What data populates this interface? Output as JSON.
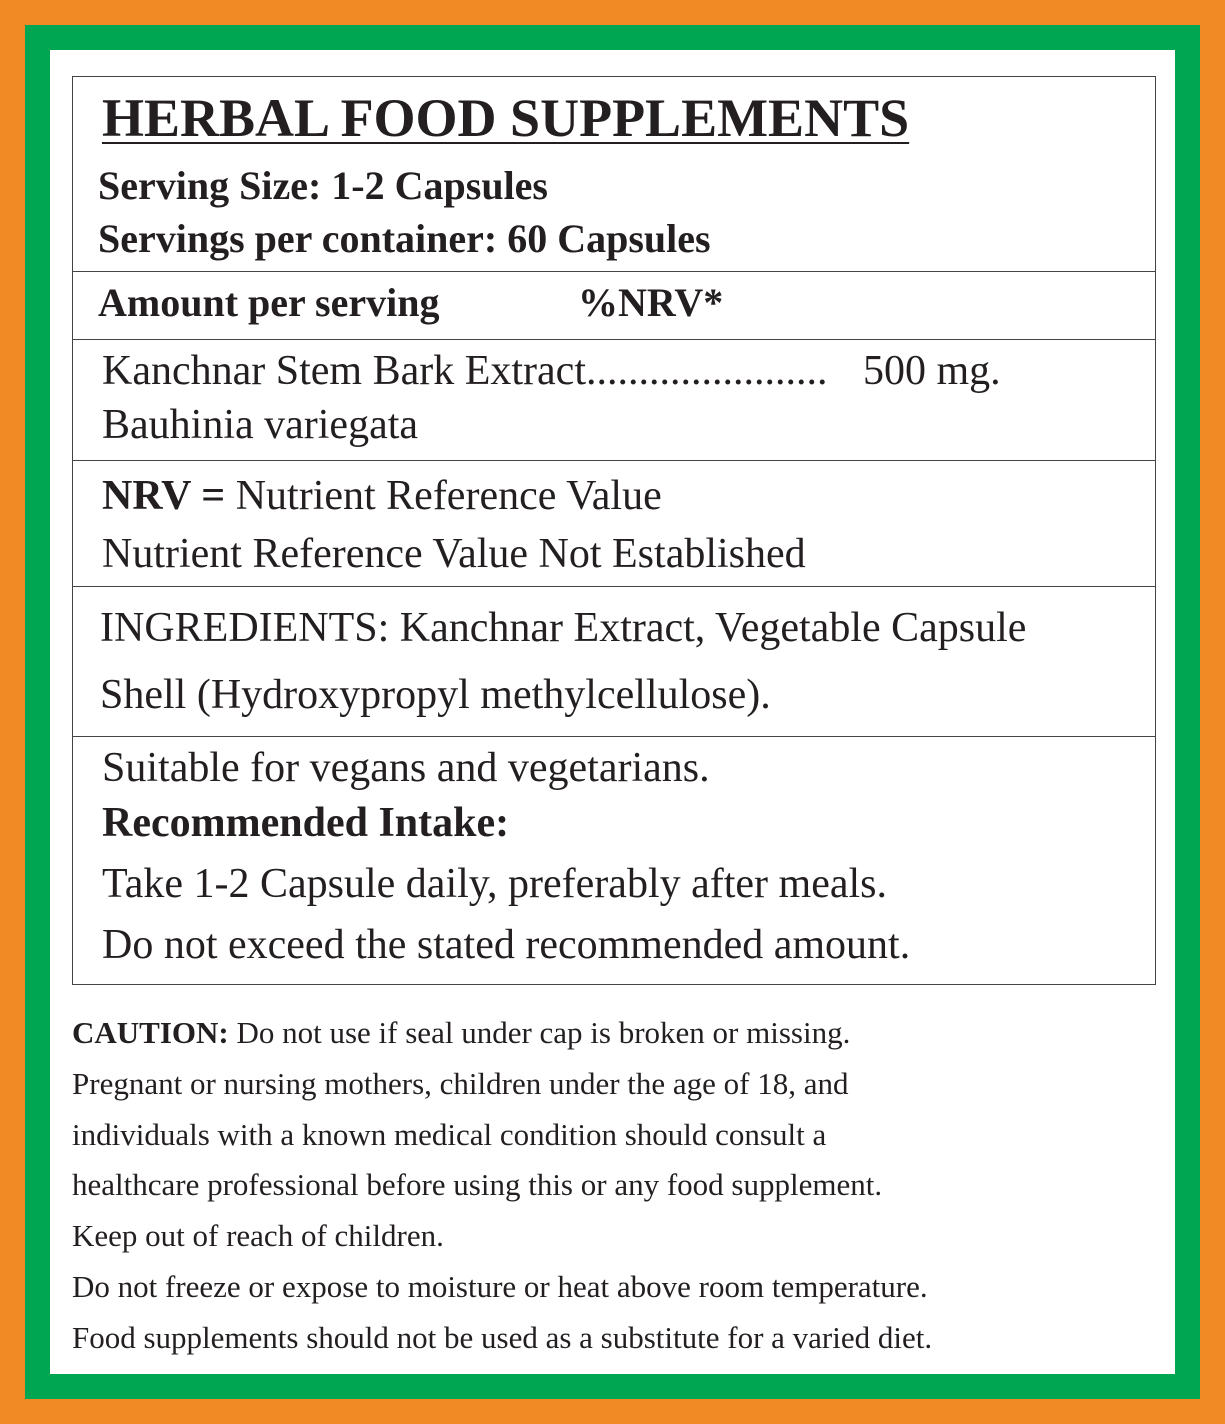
{
  "colors": {
    "outer_border": "#f18a24",
    "inner_border": "#00a651",
    "background": "#ffffff",
    "text": "#231f20"
  },
  "header": {
    "title": "HERBAL FOOD SUPPLEMENTS",
    "serving_size": "Serving Size: 1-2 Capsules",
    "servings_per_container": "Servings per container: 60 Capsules"
  },
  "amount_row": {
    "label": "Amount per serving",
    "nrv": "%NRV*"
  },
  "ingredient_row": {
    "name": "Kanchnar Stem Bark Extract.......................",
    "amount": "500 mg.",
    "botanical": "Bauhinia variegata"
  },
  "nrv_row": {
    "term": "NRV =",
    "definition": "Nutrient Reference Value",
    "note": "Nutrient Reference Value Not Established"
  },
  "ingredients_row": {
    "line1": "INGREDIENTS: Kanchnar Extract, Vegetable Capsule",
    "line2": "Shell (Hydroxypropyl methylcellulose)."
  },
  "intake_row": {
    "suitable": "Suitable for vegans and vegetarians.",
    "heading": "Recommended Intake:",
    "line1": "Take 1-2 Capsule daily, preferably after meals.",
    "line2": "Do not exceed the stated recommended amount."
  },
  "caution": {
    "label": "CAUTION:",
    "line1": "Do not use if seal under cap is broken or missing.",
    "lines": [
      "Pregnant or nursing mothers, children under the age of 18, and",
      "individuals with a known medical condition should consult a",
      "healthcare professional before using this or any food supplement.",
      "Keep out of reach of children.",
      "Do not freeze or expose to moisture or heat above room temperature.",
      "Food supplements should not be used as a substitute for a varied diet."
    ]
  }
}
